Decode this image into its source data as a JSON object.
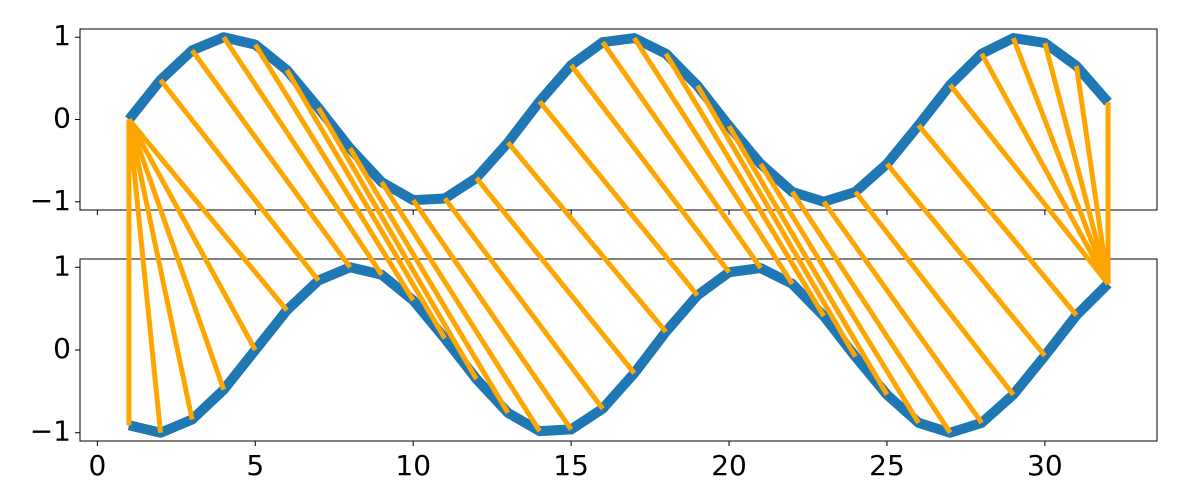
{
  "chart_data": {
    "type": "line",
    "x": [
      1,
      2,
      3,
      4,
      5,
      6,
      7,
      8,
      9,
      10,
      11,
      12,
      13,
      14,
      15,
      16,
      17,
      18,
      19,
      20,
      21,
      22,
      23,
      24,
      25,
      26,
      27,
      28,
      29,
      30,
      31,
      32
    ],
    "xlim": [
      -0.55,
      33.55
    ],
    "xticks": [
      0,
      5,
      10,
      15,
      20,
      25,
      30
    ],
    "panels": [
      {
        "ylim": [
          -1.1,
          1.1
        ],
        "yticks": [
          {
            "value": -1,
            "label": "−1"
          },
          0,
          1
        ],
        "series": [
          {
            "color": "#1f77b4",
            "values": [
              0,
              0.48,
              0.84,
              1.0,
              0.91,
              0.6,
              0.14,
              -0.35,
              -0.76,
              -0.98,
              -0.96,
              -0.71,
              -0.28,
              0.22,
              0.66,
              0.94,
              0.99,
              0.8,
              0.41,
              -0.08,
              -0.54,
              -0.88,
              -1.0,
              -0.88,
              -0.54,
              -0.07,
              0.42,
              0.8,
              0.99,
              0.93,
              0.65,
              0.21
            ]
          }
        ]
      },
      {
        "ylim": [
          -1.1,
          1.1
        ],
        "yticks": [
          {
            "value": -1,
            "label": "−1"
          },
          0,
          1
        ],
        "series": [
          {
            "color": "#1f77b4",
            "values": [
              -0.91,
              -1.0,
              -0.84,
              -0.48,
              0,
              0.48,
              0.84,
              1.0,
              0.91,
              0.6,
              0.14,
              -0.35,
              -0.76,
              -0.98,
              -0.96,
              -0.71,
              -0.28,
              0.22,
              0.66,
              0.94,
              0.99,
              0.8,
              0.41,
              -0.08,
              -0.54,
              -0.88,
              -1.0,
              -0.88,
              -0.54,
              -0.07,
              0.42,
              0.8
            ]
          }
        ]
      }
    ],
    "connections": {
      "color": "#ffa500",
      "pairs": [
        [
          1,
          1
        ],
        [
          1,
          2
        ],
        [
          1,
          3
        ],
        [
          1,
          4
        ],
        [
          1,
          5
        ],
        [
          1,
          6
        ],
        [
          2,
          7
        ],
        [
          3,
          8
        ],
        [
          4,
          9
        ],
        [
          5,
          10
        ],
        [
          6,
          11
        ],
        [
          7,
          12
        ],
        [
          8,
          13
        ],
        [
          9,
          14
        ],
        [
          10,
          15
        ],
        [
          11,
          16
        ],
        [
          12,
          17
        ],
        [
          13,
          18
        ],
        [
          14,
          19
        ],
        [
          15,
          20
        ],
        [
          16,
          21
        ],
        [
          17,
          22
        ],
        [
          18,
          23
        ],
        [
          19,
          24
        ],
        [
          20,
          25
        ],
        [
          21,
          26
        ],
        [
          22,
          27
        ],
        [
          23,
          28
        ],
        [
          24,
          29
        ],
        [
          25,
          30
        ],
        [
          26,
          31
        ],
        [
          27,
          32
        ],
        [
          28,
          32
        ],
        [
          29,
          32
        ],
        [
          30,
          32
        ],
        [
          31,
          32
        ],
        [
          32,
          32
        ]
      ]
    }
  }
}
